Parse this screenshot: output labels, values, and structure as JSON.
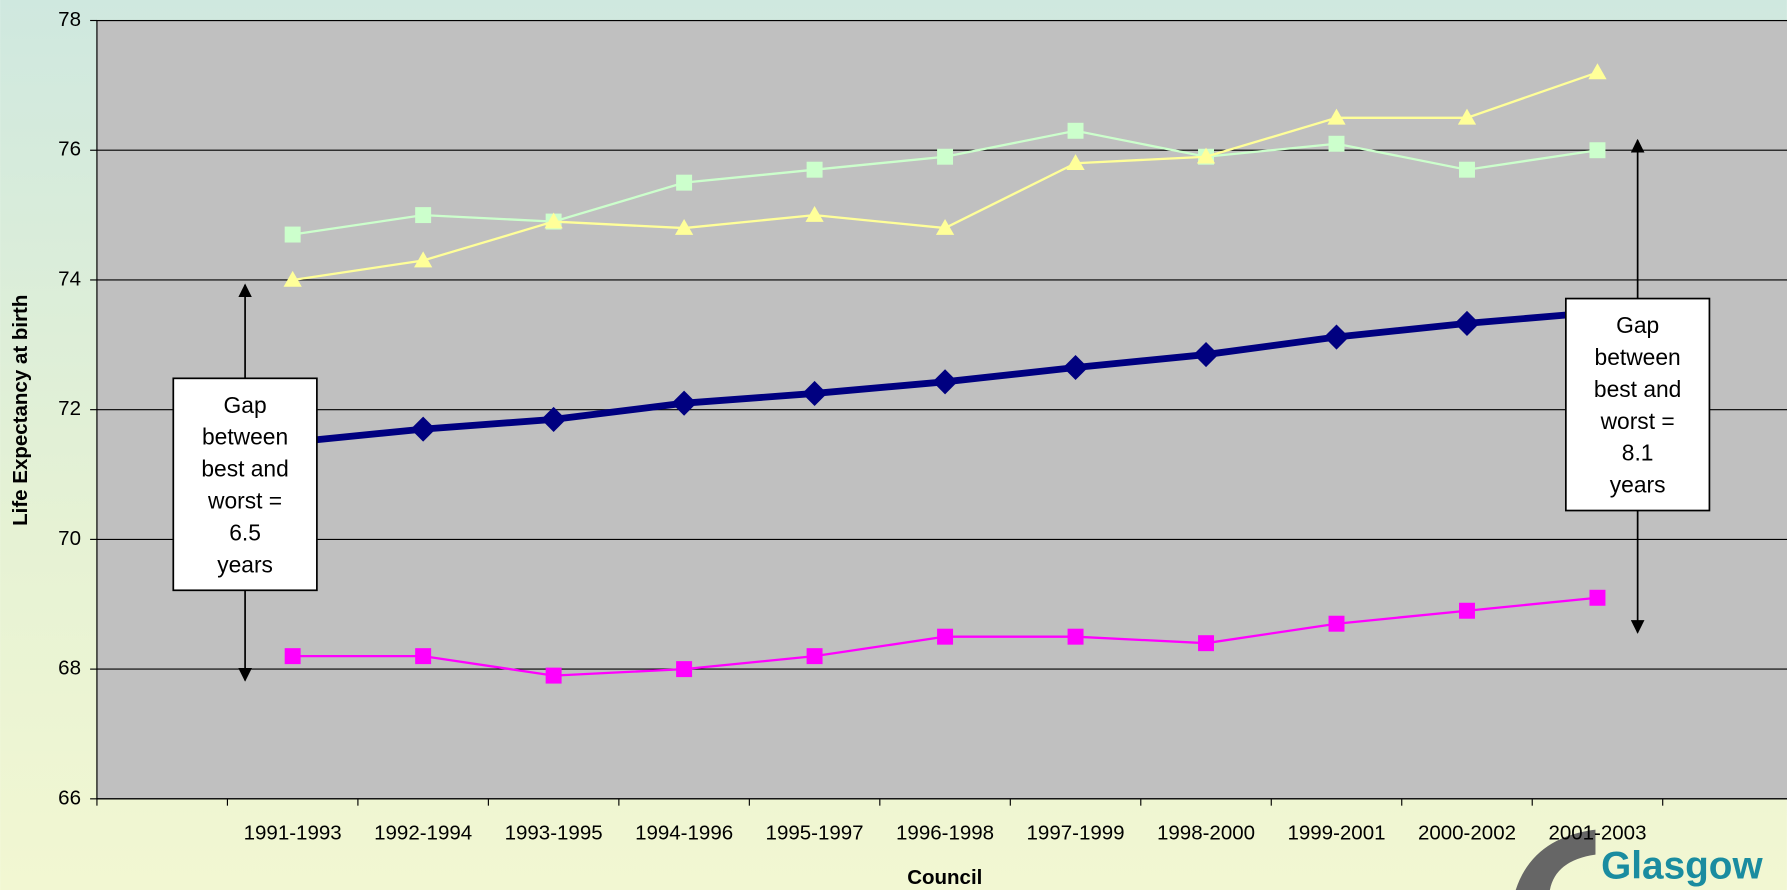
{
  "chart_data": {
    "type": "line",
    "y_axis_label": "Life Expectancy at birth",
    "x_axis_label": "Council",
    "categories": [
      null,
      "1991-1993",
      "1992-1994",
      "1993-1995",
      "1994-1996",
      "1995-1997",
      "1996-1998",
      "1997-1999",
      "1998-2000",
      "1999-2001",
      "2000-2002",
      "2001-2003",
      null
    ],
    "series": [
      {
        "color": "#000080",
        "marker": "diamond",
        "line_width": 6,
        "values": [
          null,
          71.5,
          71.7,
          71.85,
          72.1,
          72.25,
          72.43,
          72.65,
          72.85,
          73.12,
          73.33,
          73.5,
          null
        ]
      },
      {
        "color": "#ccffcc",
        "marker": "square",
        "line_width": 2,
        "values": [
          null,
          74.7,
          75.0,
          74.9,
          75.5,
          75.7,
          75.9,
          76.3,
          75.9,
          76.1,
          75.7,
          76.0,
          null
        ]
      },
      {
        "color": "#ffff99",
        "marker": "triangle",
        "line_width": 2,
        "values": [
          null,
          74.0,
          74.3,
          74.9,
          74.8,
          75.0,
          74.8,
          75.8,
          75.9,
          76.5,
          76.5,
          77.2,
          null
        ]
      },
      {
        "color": "#ff00ff",
        "marker": "square",
        "line_width": 2,
        "values": [
          null,
          68.2,
          68.2,
          67.9,
          68.0,
          68.2,
          68.5,
          68.5,
          68.4,
          68.7,
          68.9,
          69.1,
          null
        ]
      }
    ],
    "ylim": [
      66,
      78
    ],
    "yticks": [
      66,
      68,
      70,
      72,
      74,
      76,
      78
    ],
    "grid": true,
    "annotations": [
      {
        "lines": [
          "Gap",
          "between",
          "best and",
          "worst  =",
          "6.5",
          "years"
        ]
      },
      {
        "lines": [
          "Gap",
          "between",
          "best and",
          "worst  =",
          "8.1",
          "years"
        ]
      }
    ],
    "logo_text": "Glasgow"
  }
}
